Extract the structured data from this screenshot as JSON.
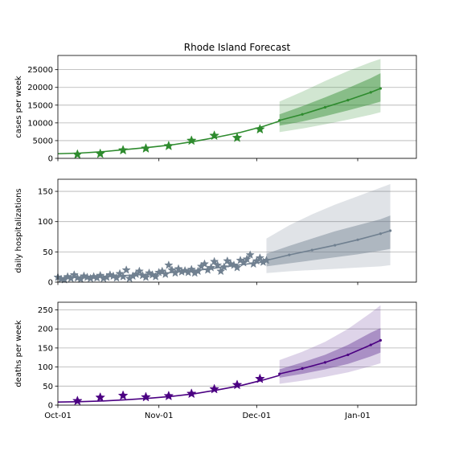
{
  "chart_data": [
    {
      "type": "line",
      "title": "Rhode Island Forecast",
      "ylabel": "cases per week",
      "xlabel": "",
      "xlim": [
        "2020-10-01",
        "2021-01-19"
      ],
      "ylim": [
        0,
        29000
      ],
      "yticks": [
        0,
        5000,
        10000,
        15000,
        20000,
        25000
      ],
      "x_ticks": [],
      "grid": "horizontal",
      "colors": {
        "line": "#2e8b2e",
        "marker": "#2e8b2e",
        "band": "#2e8b2e"
      },
      "observed": {
        "x": [
          "2020-10-07",
          "2020-10-14",
          "2020-10-21",
          "2020-10-28",
          "2020-11-04",
          "2020-11-11",
          "2020-11-18",
          "2020-11-25",
          "2020-12-02"
        ],
        "y": [
          1100,
          1300,
          2300,
          2800,
          3500,
          5000,
          6400,
          5800,
          8200
        ]
      },
      "fit": {
        "x": [
          "2020-10-01",
          "2020-10-08",
          "2020-10-15",
          "2020-10-22",
          "2020-10-29",
          "2020-11-05",
          "2020-11-12",
          "2020-11-19",
          "2020-11-26",
          "2020-12-03",
          "2020-12-08"
        ],
        "y": [
          1300,
          1500,
          1900,
          2500,
          3100,
          3800,
          4800,
          6000,
          7300,
          9000,
          10500
        ]
      },
      "forecast": {
        "x": [
          "2020-12-08",
          "2020-12-15",
          "2020-12-22",
          "2020-12-29",
          "2021-01-05",
          "2021-01-08"
        ],
        "median": [
          10700,
          12400,
          14400,
          16400,
          18600,
          19700
        ],
        "inner_low": [
          9200,
          10400,
          11900,
          13500,
          15200,
          16000
        ],
        "inner_high": [
          12400,
          14700,
          17200,
          19800,
          22600,
          24000
        ],
        "outer_low": [
          7400,
          8400,
          9600,
          10900,
          12300,
          13000
        ],
        "outer_high": [
          16000,
          18800,
          21800,
          24600,
          27100,
          28000
        ]
      }
    },
    {
      "type": "line",
      "title": "",
      "ylabel": "daily hospitalizations",
      "xlabel": "",
      "xlim": [
        "2020-10-01",
        "2021-01-19"
      ],
      "ylim": [
        0,
        170
      ],
      "yticks": [
        0,
        50,
        100,
        150
      ],
      "x_ticks": [],
      "grid": "horizontal",
      "colors": {
        "line": "#708090",
        "marker": "#708090",
        "band": "#708090"
      },
      "observed": {
        "x": [
          "2020-10-01",
          "2020-10-02",
          "2020-10-03",
          "2020-10-04",
          "2020-10-05",
          "2020-10-06",
          "2020-10-07",
          "2020-10-08",
          "2020-10-09",
          "2020-10-10",
          "2020-10-11",
          "2020-10-12",
          "2020-10-13",
          "2020-10-14",
          "2020-10-15",
          "2020-10-16",
          "2020-10-17",
          "2020-10-18",
          "2020-10-19",
          "2020-10-20",
          "2020-10-21",
          "2020-10-22",
          "2020-10-23",
          "2020-10-24",
          "2020-10-25",
          "2020-10-26",
          "2020-10-27",
          "2020-10-28",
          "2020-10-29",
          "2020-10-30",
          "2020-10-31",
          "2020-11-01",
          "2020-11-02",
          "2020-11-03",
          "2020-11-04",
          "2020-11-05",
          "2020-11-06",
          "2020-11-07",
          "2020-11-08",
          "2020-11-09",
          "2020-11-10",
          "2020-11-11",
          "2020-11-12",
          "2020-11-13",
          "2020-11-14",
          "2020-11-15",
          "2020-11-16",
          "2020-11-17",
          "2020-11-18",
          "2020-11-19",
          "2020-11-20",
          "2020-11-21",
          "2020-11-22",
          "2020-11-23",
          "2020-11-24",
          "2020-11-25",
          "2020-11-26",
          "2020-11-27",
          "2020-11-28",
          "2020-11-29",
          "2020-11-30",
          "2020-12-01",
          "2020-12-02",
          "2020-12-03",
          "2020-12-04"
        ],
        "y": [
          8,
          5,
          4,
          9,
          6,
          12,
          7,
          5,
          10,
          8,
          6,
          9,
          7,
          11,
          6,
          8,
          12,
          10,
          7,
          14,
          9,
          20,
          6,
          10,
          13,
          18,
          11,
          8,
          15,
          12,
          9,
          16,
          18,
          13,
          28,
          20,
          15,
          22,
          17,
          19,
          16,
          21,
          15,
          18,
          26,
          30,
          20,
          24,
          34,
          28,
          18,
          25,
          35,
          30,
          28,
          24,
          36,
          32,
          38,
          45,
          30,
          35,
          40,
          33,
          36
        ]
      },
      "fit": {
        "x": [
          "2020-10-01",
          "2020-10-15",
          "2020-11-01",
          "2020-11-15",
          "2020-12-01",
          "2020-12-04"
        ],
        "y": [
          7,
          9,
          14,
          21,
          32,
          34
        ]
      },
      "forecast": {
        "x": [
          "2020-12-04",
          "2020-12-11",
          "2020-12-18",
          "2020-12-25",
          "2021-01-01",
          "2021-01-08",
          "2021-01-11"
        ],
        "median": [
          36,
          45,
          53,
          61,
          70,
          80,
          85
        ],
        "inner_low": [
          26,
          31,
          36,
          41,
          46,
          52,
          55
        ],
        "inner_high": [
          47,
          60,
          72,
          84,
          94,
          104,
          110
        ],
        "outer_low": [
          15,
          18,
          20,
          22,
          24,
          26,
          28
        ],
        "outer_high": [
          72,
          94,
          112,
          128,
          142,
          156,
          162
        ]
      }
    },
    {
      "type": "line",
      "title": "",
      "ylabel": "deaths per week",
      "xlabel": "",
      "xlim": [
        "2020-10-01",
        "2021-01-19"
      ],
      "ylim": [
        0,
        270
      ],
      "yticks": [
        0,
        50,
        100,
        150,
        200,
        250
      ],
      "x_ticks": [
        "Oct-01",
        "Nov-01",
        "Dec-01",
        "Jan-01"
      ],
      "grid": "horizontal",
      "colors": {
        "line": "#4b0082",
        "marker": "#4b0082",
        "band": "#6a3d9a"
      },
      "observed": {
        "x": [
          "2020-10-07",
          "2020-10-14",
          "2020-10-21",
          "2020-10-28",
          "2020-11-04",
          "2020-11-11",
          "2020-11-18",
          "2020-11-25",
          "2020-12-02"
        ],
        "y": [
          11,
          20,
          25,
          21,
          24,
          30,
          42,
          53,
          69
        ]
      },
      "fit": {
        "x": [
          "2020-10-01",
          "2020-10-08",
          "2020-10-15",
          "2020-10-22",
          "2020-10-29",
          "2020-11-05",
          "2020-11-12",
          "2020-11-19",
          "2020-11-26",
          "2020-12-03",
          "2020-12-08"
        ],
        "y": [
          8,
          9,
          11,
          14,
          18,
          23,
          30,
          40,
          51,
          66,
          78
        ]
      },
      "forecast": {
        "x": [
          "2020-12-08",
          "2020-12-15",
          "2020-12-22",
          "2020-12-29",
          "2021-01-05",
          "2021-01-08"
        ],
        "median": [
          82,
          96,
          112,
          132,
          158,
          170
        ],
        "inner_low": [
          72,
          82,
          94,
          108,
          128,
          138
        ],
        "inner_high": [
          94,
          112,
          132,
          158,
          190,
          202
        ],
        "outer_low": [
          56,
          64,
          74,
          86,
          102,
          110
        ],
        "outer_high": [
          118,
          140,
          166,
          200,
          242,
          262
        ]
      }
    }
  ]
}
